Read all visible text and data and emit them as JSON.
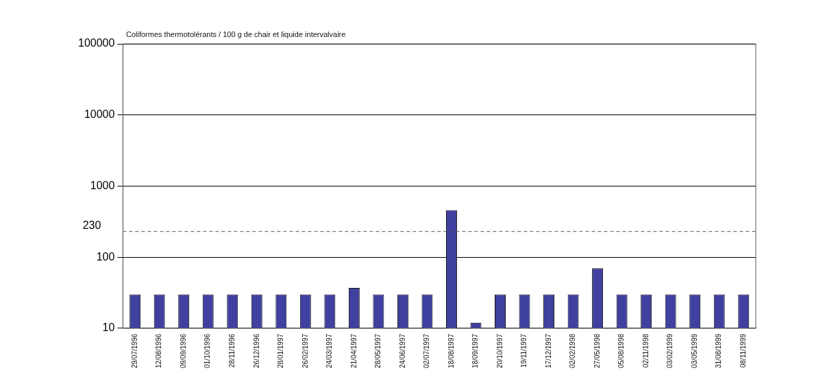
{
  "chart_data": {
    "type": "bar",
    "title": "Coliformes thermotolérants / 100 g de chair et liquide intervalvaire",
    "categories": [
      "29/07/1996",
      "12/08/1996",
      "09/09/1996",
      "01/10/1996",
      "28/11/1996",
      "26/12/1996",
      "28/01/1997",
      "26/02/1997",
      "24/03/1997",
      "21/04/1997",
      "28/05/1997",
      "24/06/1997",
      "02/07/1997",
      "18/08/1997",
      "18/09/1997",
      "20/10/1997",
      "19/11/1997",
      "17/12/1997",
      "02/02/1998",
      "27/05/1998",
      "05/08/1998",
      "02/11/1998",
      "03/02/1999",
      "03/05/1999",
      "31/08/1999",
      "08/11/1999"
    ],
    "values": [
      30,
      30,
      30,
      30,
      30,
      30,
      30,
      30,
      30,
      37,
      30,
      30,
      30,
      460,
      12,
      30,
      30,
      30,
      30,
      70,
      30,
      30,
      30,
      30,
      30,
      30
    ],
    "color": "#4040a0",
    "log": true,
    "ylim": [
      10,
      100000
    ],
    "yticks": [
      10,
      100,
      1000,
      10000,
      100000
    ],
    "grid": "y",
    "ref_lines": [
      {
        "axis": "y",
        "value": 230,
        "label": "230",
        "line_style": "dashed",
        "color": "#555555"
      }
    ]
  }
}
